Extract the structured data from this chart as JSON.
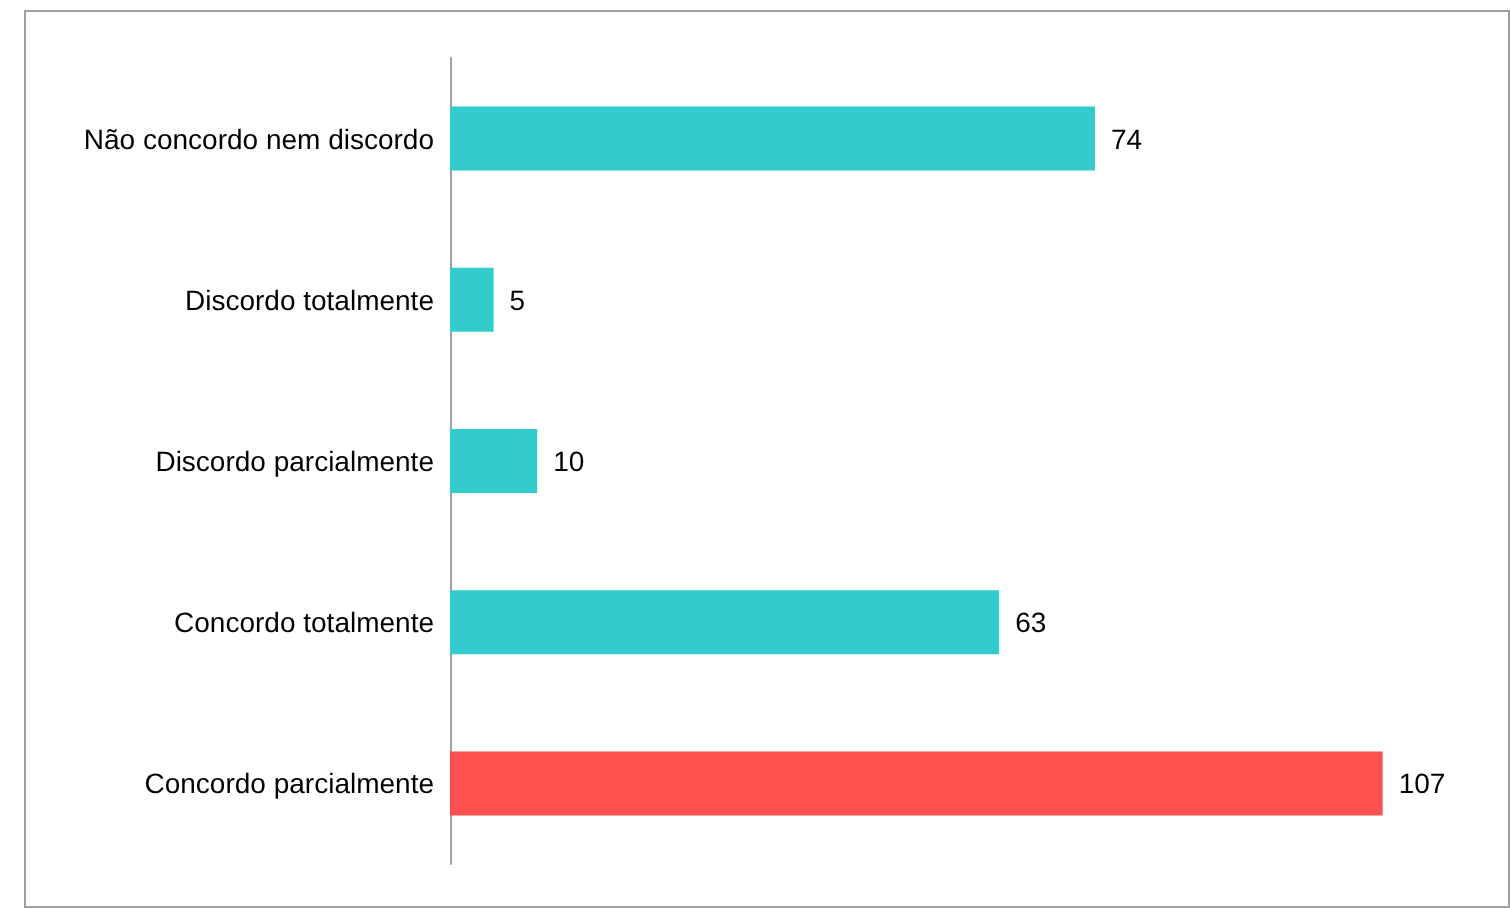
{
  "chart_data": {
    "type": "bar",
    "orientation": "horizontal",
    "categories": [
      "Não concordo nem discordo",
      "Discordo totalmente",
      "Discordo parcialmente",
      "Concordo totalmente",
      "Concordo parcialmente"
    ],
    "values": [
      74,
      5,
      10,
      63,
      107
    ],
    "colors": [
      "#33cccc",
      "#33cccc",
      "#33cccc",
      "#33cccc",
      "#ff5050"
    ],
    "data_labels": true
  }
}
